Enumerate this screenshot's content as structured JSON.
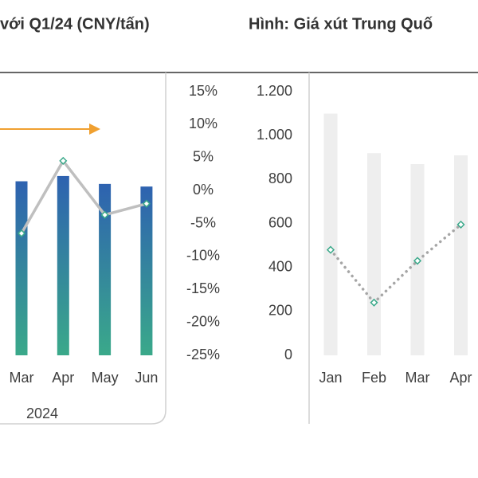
{
  "chart_data": [
    {
      "type": "combo",
      "title": "với Q1/24 (CNY/tấn)",
      "xlabel": "2024",
      "categories": [
        "Mar",
        "Apr",
        "May",
        "Jun"
      ],
      "ylim": [
        0,
        100
      ],
      "y2lim": [
        -25,
        15
      ],
      "y2ticks": [
        {
          "value": 15,
          "label": "15%"
        },
        {
          "value": 10,
          "label": "10%"
        },
        {
          "value": 5,
          "label": "5%"
        },
        {
          "value": 0,
          "label": "0%"
        },
        {
          "value": -5,
          "label": "-5%"
        },
        {
          "value": -10,
          "label": "-10%"
        },
        {
          "value": -15,
          "label": "-15%"
        },
        {
          "value": -20,
          "label": "-20%"
        },
        {
          "value": -25,
          "label": "-25%"
        }
      ],
      "series": [
        {
          "type": "bar",
          "color": "#2f6db3",
          "values": [
            66,
            68,
            65,
            64
          ]
        },
        {
          "type": "line",
          "axis": "y2",
          "color": "#bfbfbf",
          "values": [
            -6.5,
            4.5,
            -3.7,
            -2
          ]
        }
      ]
    },
    {
      "type": "combo",
      "title": "Hình: Giá xút Trung Quố",
      "categories": [
        "Jan",
        "Feb",
        "Mar",
        "Apr"
      ],
      "ylim": [
        0,
        1200
      ],
      "yticks": [
        {
          "value": 1200,
          "label": "1.200"
        },
        {
          "value": 1000,
          "label": "1.000"
        },
        800,
        600,
        400,
        200,
        0
      ],
      "series": [
        {
          "type": "bar",
          "color": "#eeeeee",
          "values": [
            1100,
            920,
            870,
            910
          ]
        },
        {
          "type": "line",
          "dotted": true,
          "color": "#a6a6a6",
          "values": [
            480,
            240,
            430,
            595
          ]
        }
      ]
    }
  ]
}
